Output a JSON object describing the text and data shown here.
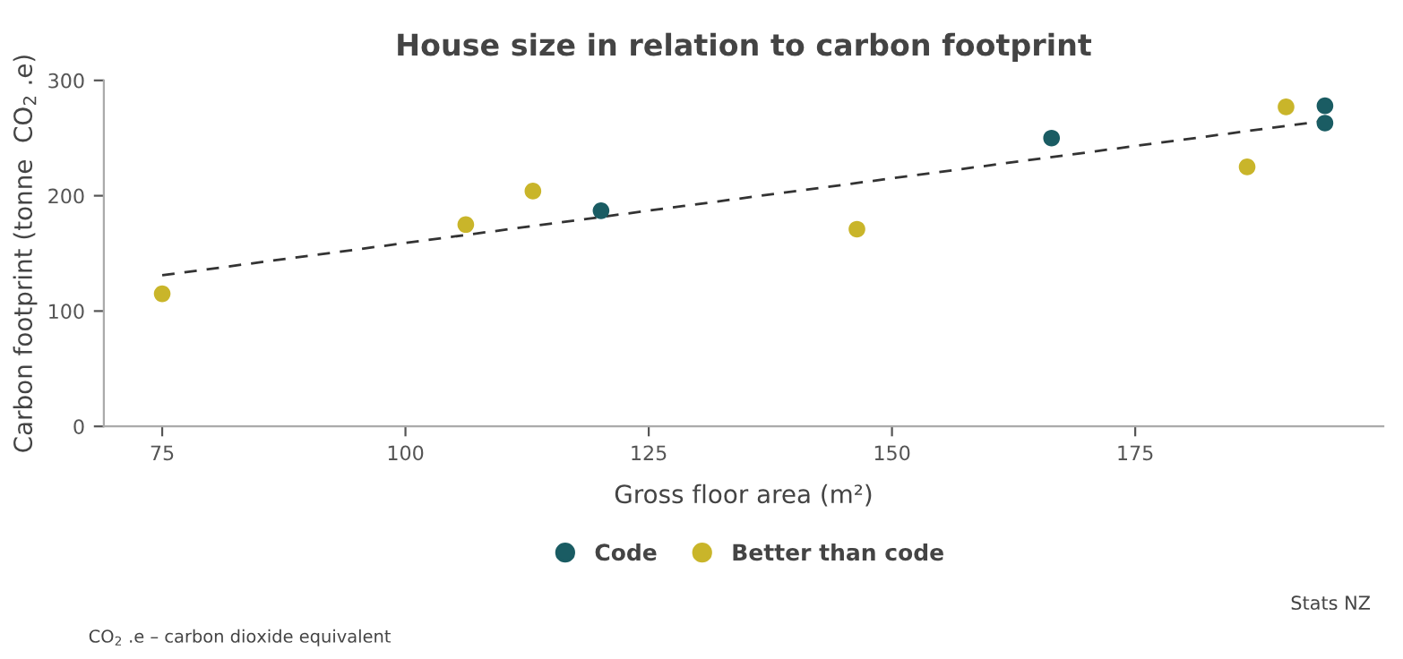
{
  "chart_data": {
    "type": "scatter",
    "title": "House size in relation to carbon footprint",
    "xlabel": "Gross floor area (m²)",
    "ylabel": "Carbon footprint (tonne  CO$_{2}$ .e)",
    "series": [
      {
        "name": "Code",
        "color": "#1a5c63",
        "x": [
          120.1,
          166.4,
          194.5,
          194.5
        ],
        "values": [
          187,
          250,
          278,
          263
        ]
      },
      {
        "name": "Better than code",
        "color": "#c9b52a",
        "x": [
          75,
          106.2,
          113.1,
          146.4,
          186.5,
          190.5
        ],
        "values": [
          115,
          175,
          204,
          171,
          225,
          277
        ]
      },
      {
        "type": "line",
        "color": "#333333",
        "line_style": "dashed",
        "marker": "none",
        "x": [
          75,
          194.5
        ],
        "values": [
          131,
          265
        ]
      }
    ],
    "xlim": [
      69,
      200.5
    ],
    "xticks": [
      75,
      100,
      125,
      150,
      175
    ],
    "ylim": [
      0,
      300
    ],
    "yticks": [
      0,
      100,
      200,
      300
    ],
    "grid": false,
    "legend": "bottom",
    "marker": "circle",
    "annotations": [
      "Stats NZ",
      "CO$_{2}$ .e – carbon dioxide equivalent"
    ]
  }
}
